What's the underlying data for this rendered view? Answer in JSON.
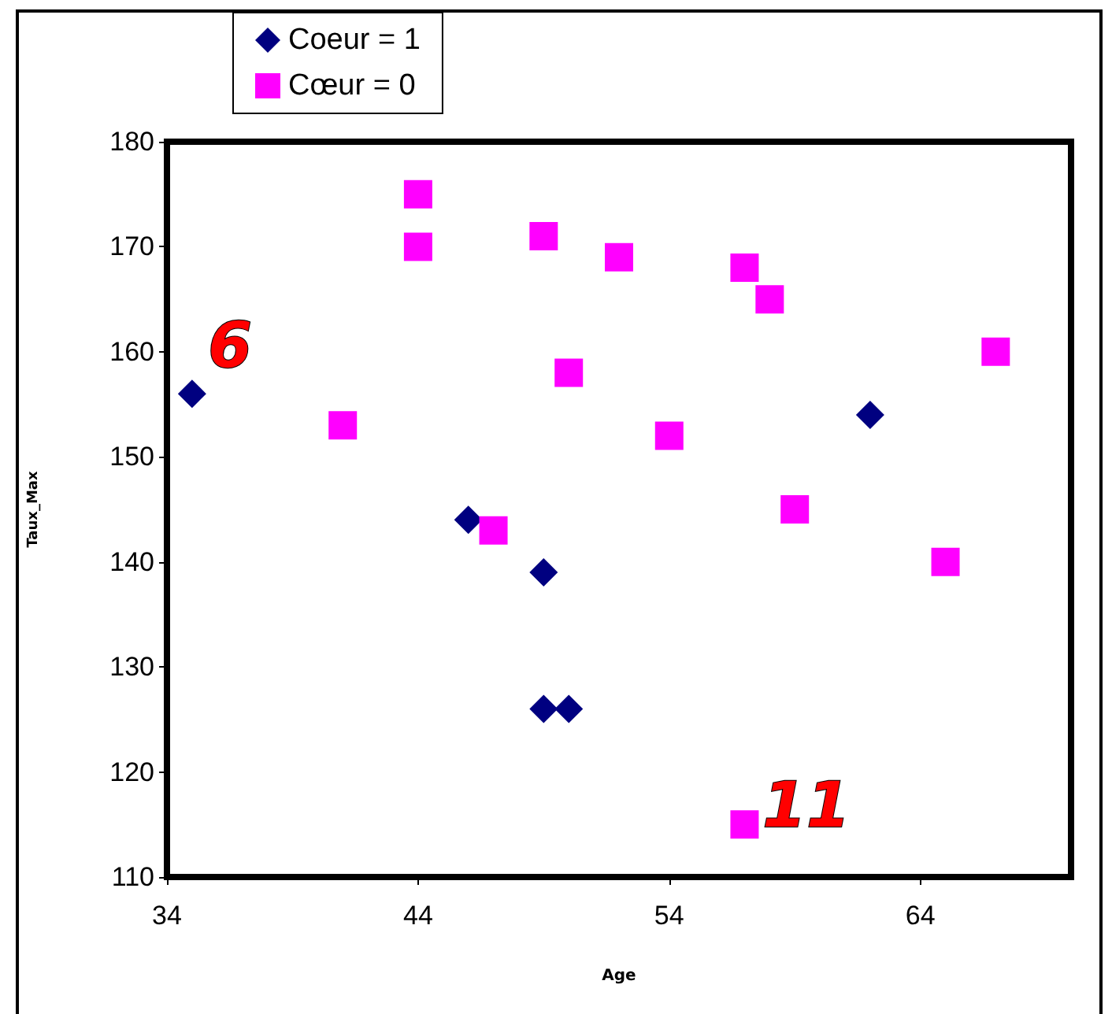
{
  "chart_data": {
    "type": "scatter",
    "xlabel": "Age",
    "ylabel": "Taux_Max",
    "xlim": [
      34,
      70
    ],
    "xticks": [
      34,
      44,
      54,
      64
    ],
    "ylim": [
      110,
      180
    ],
    "yticks": [
      110,
      120,
      130,
      140,
      150,
      160,
      170,
      180
    ],
    "grid": false,
    "legend": "top left",
    "series": [
      {
        "name": "Coeur = 1",
        "color": "#000080",
        "marker": "diamond",
        "x": [
          35,
          46,
          49,
          49,
          50,
          62
        ],
        "values": [
          156,
          144,
          139,
          126,
          126,
          154
        ]
      },
      {
        "name": "Cœur = 0",
        "color": "#ff00ff",
        "marker": "square",
        "x": [
          44,
          44,
          41,
          47,
          49,
          50,
          52,
          54,
          57,
          58,
          59,
          57,
          65,
          67
        ],
        "values": [
          175,
          170,
          153,
          143,
          171,
          158,
          169,
          152,
          168,
          165,
          145,
          115,
          140,
          160
        ]
      }
    ],
    "annotations": [
      "6",
      "11"
    ]
  }
}
